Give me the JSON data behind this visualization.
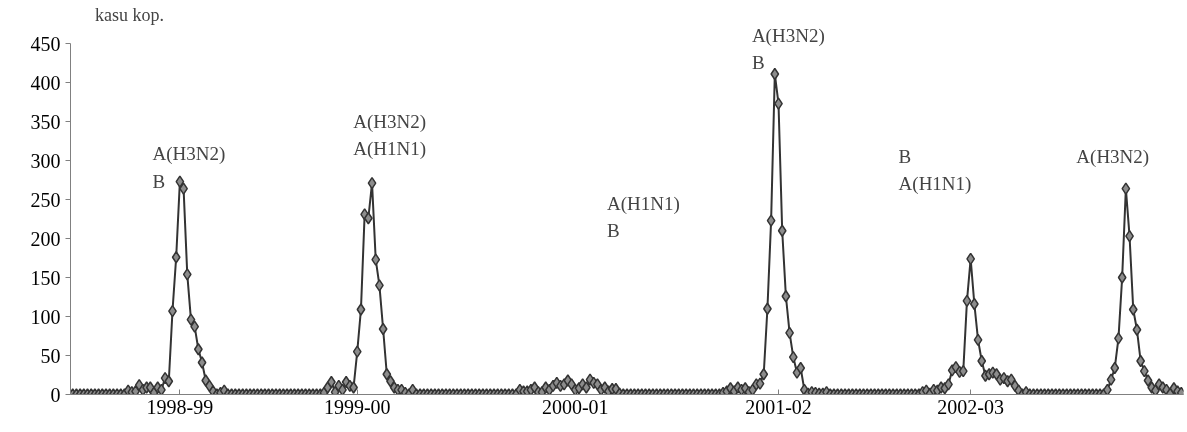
{
  "chart_data": {
    "type": "line",
    "ylabel": "kasu kop.",
    "categories": [
      null,
      null,
      null,
      null,
      null,
      null,
      null,
      null,
      null,
      null,
      null,
      null,
      null,
      null,
      null,
      null,
      null,
      null,
      null,
      null,
      null,
      null,
      null,
      null,
      null,
      null,
      null,
      null,
      null,
      "1998-99",
      null,
      null,
      null,
      null,
      null,
      null,
      null,
      null,
      null,
      null,
      null,
      null,
      null,
      null,
      null,
      null,
      null,
      null,
      null,
      null,
      null,
      null,
      null,
      null,
      null,
      null,
      null,
      null,
      null,
      null,
      null,
      null,
      null,
      null,
      null,
      null,
      null,
      null,
      null,
      null,
      null,
      null,
      null,
      null,
      null,
      null,
      null,
      "1999-00",
      null,
      null,
      null,
      null,
      null,
      null,
      null,
      null,
      null,
      null,
      null,
      null,
      null,
      null,
      null,
      null,
      null,
      null,
      null,
      null,
      null,
      null,
      null,
      null,
      null,
      null,
      null,
      null,
      null,
      null,
      null,
      null,
      null,
      null,
      null,
      null,
      null,
      null,
      null,
      null,
      null,
      null,
      null,
      null,
      null,
      null,
      null,
      null,
      null,
      null,
      null,
      null,
      null,
      null,
      null,
      null,
      null,
      null,
      "2000-01",
      null,
      null,
      null,
      null,
      null,
      null,
      null,
      null,
      null,
      null,
      null,
      null,
      null,
      null,
      null,
      null,
      null,
      null,
      null,
      null,
      null,
      null,
      null,
      null,
      null,
      null,
      null,
      null,
      null,
      null,
      null,
      null,
      null,
      null,
      null,
      null,
      null,
      null,
      null,
      null,
      null,
      null,
      null,
      null,
      null,
      null,
      null,
      null,
      null,
      null,
      null,
      null,
      null,
      null,
      "2001-02",
      null,
      null,
      null,
      null,
      null,
      null,
      null,
      null,
      null,
      null,
      null,
      null,
      null,
      null,
      null,
      null,
      null,
      null,
      null,
      null,
      null,
      null,
      null,
      null,
      null,
      null,
      null,
      null,
      null,
      null,
      null,
      null,
      null,
      null,
      null,
      null,
      null,
      null,
      null,
      null,
      null,
      null,
      null,
      null,
      null,
      null,
      null,
      null,
      null,
      null,
      null,
      "2002-03",
      null,
      null,
      null,
      null,
      null,
      null,
      null,
      null,
      null,
      null,
      null,
      null,
      null,
      null,
      null,
      null,
      null,
      null,
      null,
      null,
      null,
      null,
      null,
      null,
      null,
      null,
      null,
      null,
      null,
      null,
      null,
      null,
      null,
      null,
      null,
      null,
      null,
      null,
      null,
      null,
      null,
      null,
      null,
      null,
      null,
      null,
      null,
      null,
      null,
      null,
      null,
      null,
      null,
      null,
      null,
      null,
      null
    ],
    "series": [
      {
        "color": "#333333",
        "values": [
          0,
          0,
          0,
          0,
          0,
          0,
          0,
          0,
          0,
          0,
          0,
          0,
          0,
          0,
          0,
          5,
          3,
          4,
          12,
          6,
          9,
          9,
          2,
          9,
          6,
          21,
          17,
          107,
          176,
          273,
          264,
          154,
          96,
          87,
          58,
          41,
          18,
          11,
          4,
          0,
          2,
          5,
          0,
          0,
          0,
          0,
          0,
          0,
          0,
          0,
          0,
          0,
          0,
          0,
          0,
          0,
          0,
          0,
          0,
          0,
          0,
          0,
          0,
          0,
          0,
          0,
          0,
          0,
          2,
          9,
          16,
          3,
          11,
          6,
          16,
          11,
          9,
          55,
          109,
          231,
          226,
          271,
          173,
          140,
          84,
          26,
          17,
          9,
          6,
          6,
          2,
          0,
          6,
          0,
          0,
          0,
          0,
          0,
          0,
          0,
          0,
          0,
          0,
          0,
          0,
          0,
          0,
          0,
          0,
          0,
          0,
          0,
          0,
          0,
          0,
          0,
          0,
          0,
          0,
          0,
          0,
          6,
          4,
          4,
          6,
          9,
          3,
          3,
          9,
          6,
          11,
          15,
          11,
          13,
          18,
          13,
          6,
          8,
          13,
          9,
          19,
          15,
          13,
          6,
          9,
          4,
          7,
          7,
          1,
          0,
          0,
          0,
          0,
          0,
          0,
          0,
          0,
          0,
          0,
          0,
          0,
          0,
          0,
          0,
          0,
          0,
          0,
          0,
          0,
          0,
          0,
          0,
          0,
          0,
          0,
          0,
          2,
          4,
          8,
          4,
          9,
          6,
          8,
          3,
          6,
          13,
          14,
          26,
          110,
          223,
          411,
          373,
          210,
          126,
          79,
          48,
          28,
          34,
          6,
          1,
          3,
          2,
          1,
          1,
          3,
          0,
          0,
          0,
          0,
          0,
          0,
          0,
          0,
          0,
          0,
          0,
          0,
          0,
          0,
          0,
          0,
          0,
          0,
          0,
          0,
          0,
          0,
          0,
          0,
          0,
          3,
          5,
          1,
          6,
          5,
          9,
          8,
          13,
          31,
          35,
          29,
          30,
          120,
          174,
          116,
          70,
          43,
          24,
          26,
          28,
          26,
          19,
          21,
          17,
          19,
          11,
          5,
          0,
          3,
          0,
          0,
          0,
          0,
          0,
          0,
          0,
          0,
          0,
          0,
          0,
          0,
          0,
          0,
          0,
          0,
          0,
          0,
          0,
          0,
          0,
          6,
          19,
          34,
          72,
          150,
          264,
          203,
          109,
          83,
          43,
          30,
          18,
          9,
          5,
          13,
          9,
          6,
          1,
          8,
          4,
          2
        ]
      }
    ],
    "ylim": [
      0,
      450
    ],
    "yticks": [
      0,
      50,
      100,
      150,
      200,
      250,
      300,
      350,
      400,
      450
    ],
    "grid": false,
    "marker": "diamond",
    "line_style": "solid",
    "annotations": [
      "A(H3N2)\nB",
      "A(H3N2)\nA(H1N1)",
      "A(H1N1)\nB",
      "A(H3N2)\nB",
      "B\nA(H1N1)",
      "A(H3N2)"
    ]
  }
}
